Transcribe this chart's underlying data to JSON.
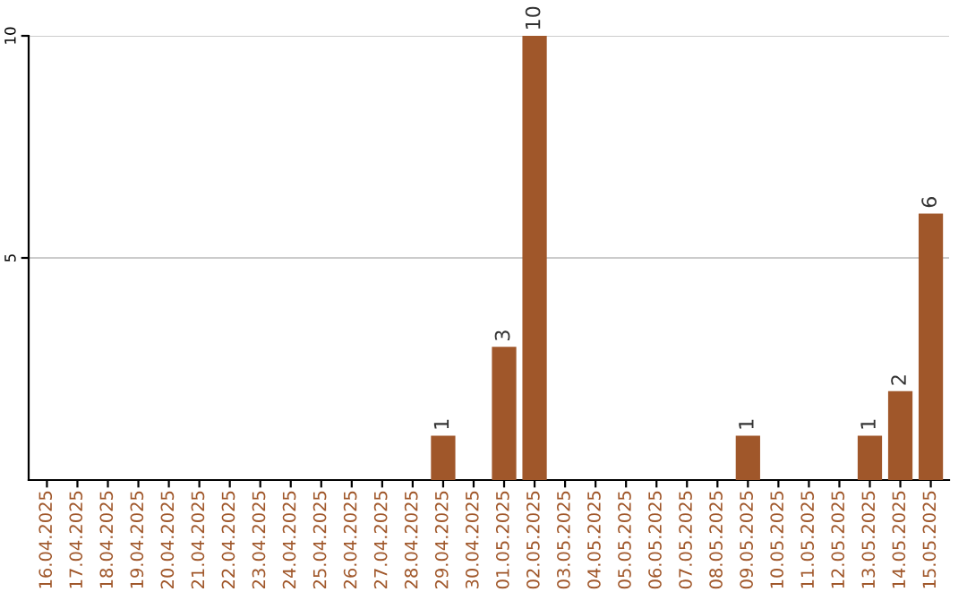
{
  "chart_data": {
    "type": "bar",
    "categories": [
      "16.04.2025",
      "17.04.2025",
      "18.04.2025",
      "19.04.2025",
      "20.04.2025",
      "21.04.2025",
      "22.04.2025",
      "23.04.2025",
      "24.04.2025",
      "25.04.2025",
      "26.04.2025",
      "27.04.2025",
      "28.04.2025",
      "29.04.2025",
      "30.04.2025",
      "01.05.2025",
      "02.05.2025",
      "03.05.2025",
      "04.05.2025",
      "05.05.2025",
      "06.05.2025",
      "07.05.2025",
      "08.05.2025",
      "09.05.2025",
      "10.05.2025",
      "11.05.2025",
      "12.05.2025",
      "13.05.2025",
      "14.05.2025",
      "15.05.2025"
    ],
    "values": [
      0,
      0,
      0,
      0,
      0,
      0,
      0,
      0,
      0,
      0,
      0,
      0,
      0,
      1,
      0,
      3,
      10,
      0,
      0,
      0,
      0,
      0,
      0,
      1,
      0,
      0,
      0,
      1,
      2,
      6
    ],
    "value_labels": [
      null,
      null,
      null,
      null,
      null,
      null,
      null,
      null,
      null,
      null,
      null,
      null,
      null,
      "1",
      null,
      "3",
      "10",
      null,
      null,
      null,
      null,
      null,
      null,
      "1",
      null,
      null,
      null,
      "1",
      "2",
      "6"
    ],
    "color": "#a0572a",
    "ylim": [
      0,
      10
    ],
    "yticks": [
      5,
      10
    ],
    "grid": "y"
  }
}
